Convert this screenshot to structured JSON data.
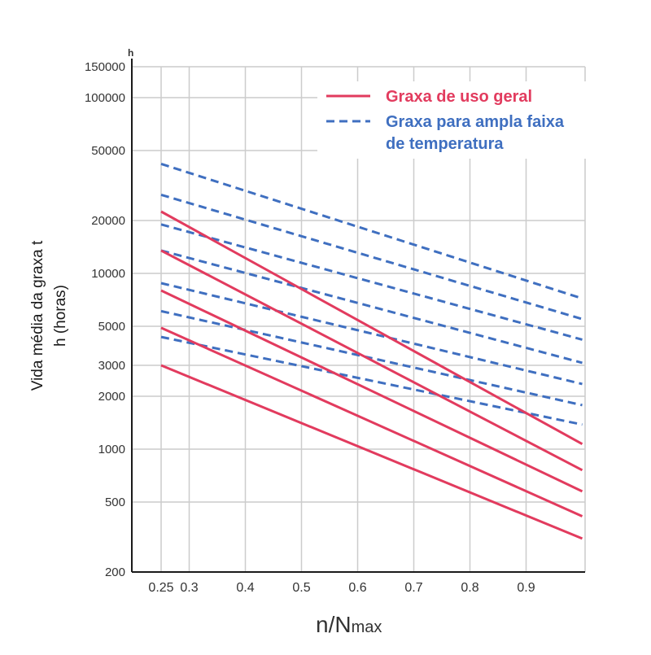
{
  "chart_data": {
    "type": "line",
    "ylabel_line1": "Vida média da graxa t",
    "ylabel_line2": "h (horas)",
    "y_unit": "h",
    "xlabel_main": "n/N",
    "xlabel_sub": "max",
    "x_scale": "linear",
    "y_scale": "log",
    "xlim": [
      0.2,
      1.0
    ],
    "ylim": [
      200,
      150000
    ],
    "xticks": [
      0.25,
      0.3,
      0.4,
      0.5,
      0.6,
      0.7,
      0.8,
      0.9
    ],
    "xtick_labels": [
      "0.25",
      "0.3",
      "0.4",
      "0.5",
      "0.6",
      "0.7",
      "0.8",
      "0.9"
    ],
    "yticks": [
      200,
      500,
      1000,
      2000,
      3000,
      5000,
      10000,
      20000,
      50000,
      100000,
      150000
    ],
    "ytick_labels": [
      "200",
      "500",
      "1000",
      "2000",
      "3000",
      "5000",
      "10000",
      "20000",
      "50000",
      "100000",
      "150000"
    ],
    "grid": true,
    "legend_position": "top-right",
    "colors": {
      "general": "#e23b5e",
      "wide": "#3f6fc0",
      "grid": "#cccccc",
      "axis": "#1a1a1a"
    },
    "legend": [
      {
        "label": "Graxa de uso geral",
        "style": "solid",
        "color": "#e23b5e"
      },
      {
        "label_line1": "Graxa para ampla faixa",
        "label_line2": "de temperatura",
        "style": "dashed",
        "color": "#3f6fc0"
      }
    ],
    "series": [
      {
        "group": "general",
        "style": "solid",
        "x": [
          0.25,
          1.0
        ],
        "y": [
          22500,
          1070
        ]
      },
      {
        "group": "general",
        "style": "solid",
        "x": [
          0.25,
          1.0
        ],
        "y": [
          13500,
          760
        ]
      },
      {
        "group": "general",
        "style": "solid",
        "x": [
          0.25,
          1.0
        ],
        "y": [
          8000,
          575
        ]
      },
      {
        "group": "general",
        "style": "solid",
        "x": [
          0.25,
          1.0
        ],
        "y": [
          4900,
          415
        ]
      },
      {
        "group": "general",
        "style": "solid",
        "x": [
          0.25,
          1.0
        ],
        "y": [
          3000,
          310
        ]
      },
      {
        "group": "wide",
        "style": "dashed",
        "x": [
          0.25,
          1.0
        ],
        "y": [
          42000,
          7200
        ]
      },
      {
        "group": "wide",
        "style": "dashed",
        "x": [
          0.25,
          1.0
        ],
        "y": [
          28000,
          5500
        ]
      },
      {
        "group": "wide",
        "style": "dashed",
        "x": [
          0.25,
          1.0
        ],
        "y": [
          19000,
          4200
        ]
      },
      {
        "group": "wide",
        "style": "dashed",
        "x": [
          0.25,
          1.0
        ],
        "y": [
          13500,
          3100
        ]
      },
      {
        "group": "wide",
        "style": "dashed",
        "x": [
          0.25,
          1.0
        ],
        "y": [
          8800,
          2350
        ]
      },
      {
        "group": "wide",
        "style": "dashed",
        "x": [
          0.25,
          1.0
        ],
        "y": [
          6100,
          1780
        ]
      },
      {
        "group": "wide",
        "style": "dashed",
        "x": [
          0.25,
          1.0
        ],
        "y": [
          4350,
          1380
        ]
      }
    ]
  }
}
